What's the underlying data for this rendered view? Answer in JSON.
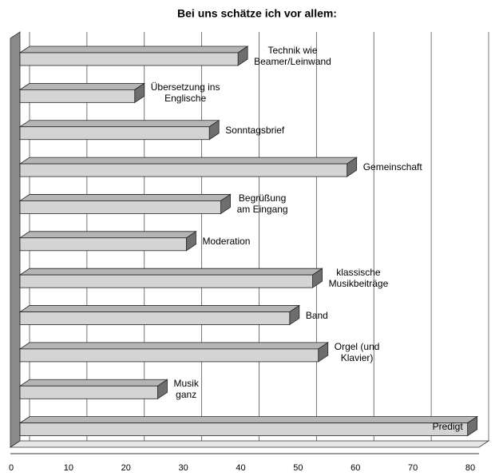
{
  "chart_data": {
    "type": "bar3d_horizontal",
    "title": "Bei uns schätze ich vor allem:",
    "categories": [
      "Technik wie\nBeamer/Leinwand",
      "Übersetzung ins\nEnglische",
      "Sonntagsbrief",
      "Gemeinschaft",
      "Begrüßung\nam Eingang",
      "Moderation",
      "klassische\nMusikbeiträge",
      "Band",
      "Orgel (und\nKlavier)",
      "Musik\nganz",
      "Predigt"
    ],
    "values": [
      38,
      20,
      33,
      57,
      35,
      29,
      51,
      47,
      52,
      24,
      78
    ],
    "color": "#d4d4d4",
    "xlim": [
      0,
      80
    ],
    "xticks": [
      0,
      10,
      20,
      30,
      40,
      50,
      60,
      70,
      80
    ],
    "grid": true
  }
}
